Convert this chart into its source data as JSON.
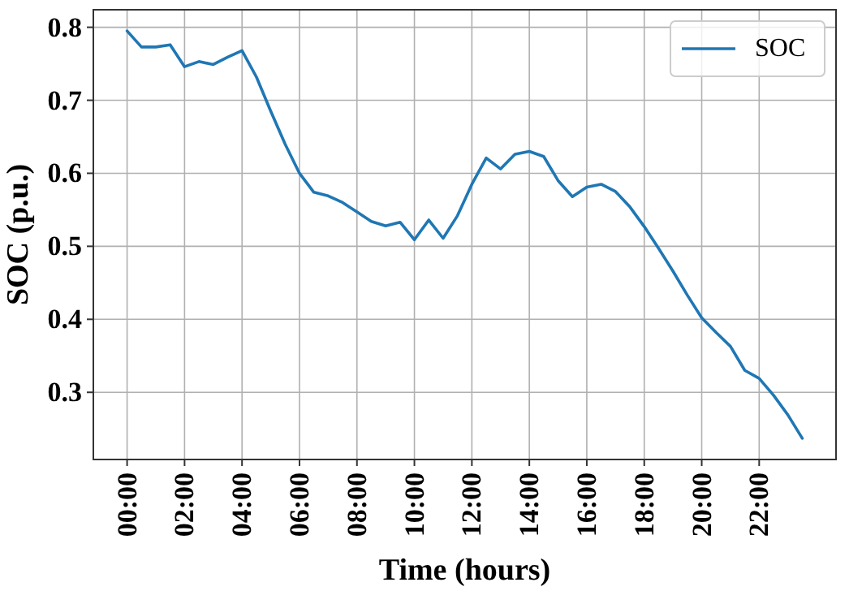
{
  "chart_data": {
    "type": "line",
    "xlabel": "Time (hours)",
    "ylabel": "SOC (p.u.)",
    "x": [
      0,
      0.5,
      1,
      1.5,
      2,
      2.5,
      3,
      3.5,
      4,
      4.5,
      5,
      5.5,
      6,
      6.5,
      7,
      7.5,
      8,
      8.5,
      9,
      9.5,
      10,
      10.5,
      11,
      11.5,
      12,
      12.5,
      13,
      13.5,
      14,
      14.5,
      15,
      15.5,
      16,
      16.5,
      17,
      17.5,
      18,
      18.5,
      19,
      19.5,
      20,
      20.5,
      21,
      21.5,
      22,
      22.5,
      23,
      23.5
    ],
    "series": [
      {
        "name": "SOC",
        "color": "#1f77b4",
        "values": [
          0.795,
          0.773,
          0.773,
          0.776,
          0.746,
          0.753,
          0.749,
          0.759,
          0.768,
          0.732,
          0.685,
          0.64,
          0.6,
          0.574,
          0.569,
          0.56,
          0.547,
          0.534,
          0.528,
          0.533,
          0.509,
          0.536,
          0.511,
          0.542,
          0.585,
          0.621,
          0.606,
          0.626,
          0.63,
          0.623,
          0.59,
          0.568,
          0.581,
          0.585,
          0.575,
          0.554,
          0.527,
          0.497,
          0.466,
          0.433,
          0.402,
          0.382,
          0.363,
          0.33,
          0.319,
          0.296,
          0.269,
          0.237
        ]
      }
    ],
    "xlim": [
      -1.175,
      24.675
    ],
    "ylim": [
      0.208,
      0.824
    ],
    "xticks": [
      {
        "value": 0,
        "label": "00:00"
      },
      {
        "value": 2,
        "label": "02:00"
      },
      {
        "value": 4,
        "label": "04:00"
      },
      {
        "value": 6,
        "label": "06:00"
      },
      {
        "value": 8,
        "label": "08:00"
      },
      {
        "value": 10,
        "label": "10:00"
      },
      {
        "value": 12,
        "label": "12:00"
      },
      {
        "value": 14,
        "label": "14:00"
      },
      {
        "value": 16,
        "label": "16:00"
      },
      {
        "value": 18,
        "label": "18:00"
      },
      {
        "value": 20,
        "label": "20:00"
      },
      {
        "value": 22,
        "label": "22:00"
      }
    ],
    "yticks": [
      0.3,
      0.4,
      0.5,
      0.6,
      0.7,
      0.8
    ],
    "grid": true,
    "legend": "top right",
    "marker": "none",
    "line_style": "solid"
  }
}
